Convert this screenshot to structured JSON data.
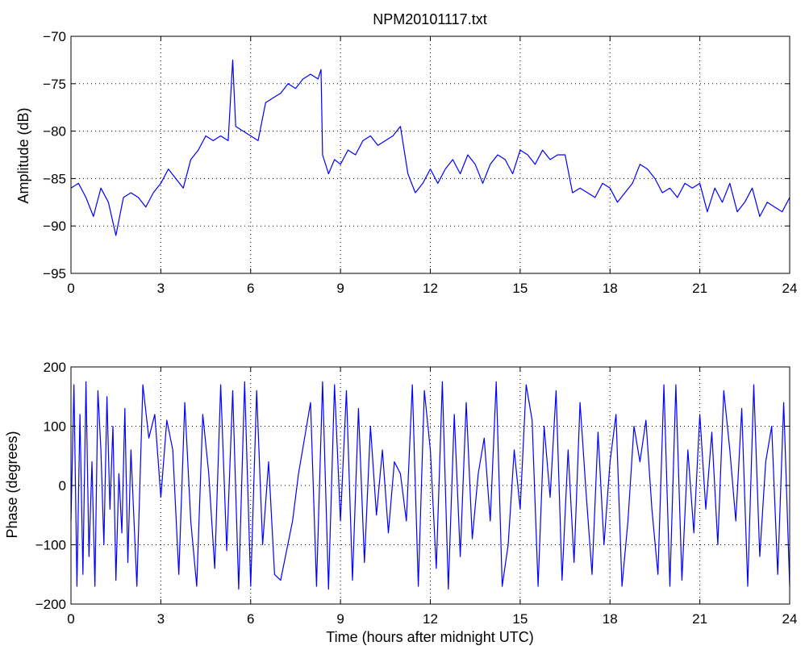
{
  "chart_data": [
    {
      "type": "line",
      "title": "NPM20101117.txt",
      "xlabel": "",
      "ylabel": "Amplitude (dB)",
      "xlim": [
        0,
        24
      ],
      "ylim": [
        -95,
        -70
      ],
      "xticks": [
        0,
        3,
        6,
        9,
        12,
        15,
        18,
        21,
        24
      ],
      "yticks": [
        -95,
        -90,
        -85,
        -80,
        -75,
        -70
      ],
      "grid": true,
      "line_color": "#0000ff",
      "series": [
        {
          "x": [
            0,
            0.25,
            0.5,
            0.75,
            1.0,
            1.25,
            1.5,
            1.75,
            2.0,
            2.25,
            2.5,
            2.75,
            3.0,
            3.25,
            3.5,
            3.75,
            4.0,
            4.25,
            4.5,
            4.75,
            5.0,
            5.25,
            5.4,
            5.5,
            5.75,
            6.0,
            6.25,
            6.5,
            6.75,
            7.0,
            7.25,
            7.5,
            7.75,
            8.0,
            8.25,
            8.35,
            8.4,
            8.6,
            8.8,
            9.0,
            9.25,
            9.5,
            9.75,
            10.0,
            10.25,
            10.5,
            10.75,
            11.0,
            11.25,
            11.5,
            11.75,
            12.0,
            12.25,
            12.5,
            12.75,
            13.0,
            13.25,
            13.5,
            13.75,
            14.0,
            14.25,
            14.5,
            14.75,
            15.0,
            15.25,
            15.5,
            15.75,
            16.0,
            16.25,
            16.5,
            16.75,
            17.0,
            17.25,
            17.5,
            17.75,
            18.0,
            18.25,
            18.5,
            18.75,
            19.0,
            19.25,
            19.5,
            19.75,
            20.0,
            20.25,
            20.5,
            20.75,
            21.0,
            21.25,
            21.5,
            21.75,
            22.0,
            22.25,
            22.5,
            22.75,
            23.0,
            23.25,
            23.5,
            23.75,
            24.0
          ],
          "y": [
            -86,
            -85.5,
            -87,
            -89,
            -86,
            -87.5,
            -91,
            -87,
            -86.5,
            -87,
            -88,
            -86.5,
            -85.5,
            -84,
            -85,
            -86,
            -83,
            -82,
            -80.5,
            -81,
            -80.5,
            -81,
            -72.5,
            -79.5,
            -80,
            -80.5,
            -81,
            -77,
            -76.5,
            -76,
            -75,
            -75.5,
            -74.5,
            -74,
            -74.5,
            -73.5,
            -82.5,
            -84.5,
            -83,
            -83.5,
            -82,
            -82.5,
            -81,
            -80.5,
            -81.5,
            -81,
            -80.5,
            -79.5,
            -84.5,
            -86.5,
            -85.5,
            -84,
            -85.5,
            -84,
            -83,
            -84.5,
            -82.5,
            -83.5,
            -85.5,
            -83.5,
            -82.5,
            -83,
            -84.5,
            -82,
            -82.5,
            -83.5,
            -82,
            -83,
            -82.5,
            -82.5,
            -86.5,
            -86,
            -86.5,
            -87,
            -85.5,
            -86,
            -87.5,
            -86.5,
            -85.5,
            -83.5,
            -84,
            -85,
            -86.5,
            -86,
            -87,
            -85.5,
            -86,
            -85.5,
            -88.5,
            -86,
            -87.5,
            -85.5,
            -88.5,
            -87.5,
            -86,
            -89,
            -87.5,
            -88,
            -88.5,
            -87
          ]
        }
      ]
    },
    {
      "type": "line",
      "title": "",
      "xlabel": "Time (hours after midnight UTC)",
      "ylabel": "Phase (degrees)",
      "xlim": [
        0,
        24
      ],
      "ylim": [
        -200,
        200
      ],
      "xticks": [
        0,
        3,
        6,
        9,
        12,
        15,
        18,
        21,
        24
      ],
      "yticks": [
        -200,
        -100,
        0,
        100,
        200
      ],
      "grid": true,
      "line_color": "#0000ff",
      "series": [
        {
          "x": [
            0,
            0.1,
            0.2,
            0.3,
            0.4,
            0.5,
            0.6,
            0.7,
            0.8,
            0.9,
            1.0,
            1.1,
            1.2,
            1.3,
            1.4,
            1.5,
            1.6,
            1.7,
            1.8,
            1.9,
            2.0,
            2.2,
            2.4,
            2.6,
            2.8,
            3.0,
            3.2,
            3.4,
            3.6,
            3.8,
            4.0,
            4.2,
            4.4,
            4.6,
            4.8,
            5.0,
            5.2,
            5.4,
            5.6,
            5.8,
            6.0,
            6.2,
            6.4,
            6.6,
            6.8,
            7.0,
            7.2,
            7.4,
            7.6,
            7.8,
            8.0,
            8.2,
            8.4,
            8.6,
            8.8,
            9.0,
            9.2,
            9.4,
            9.6,
            9.8,
            10.0,
            10.2,
            10.4,
            10.6,
            10.8,
            11.0,
            11.2,
            11.4,
            11.6,
            11.8,
            12.0,
            12.2,
            12.4,
            12.6,
            12.8,
            13.0,
            13.2,
            13.4,
            13.6,
            13.8,
            14.0,
            14.2,
            14.4,
            14.6,
            14.8,
            15.0,
            15.2,
            15.4,
            15.6,
            15.8,
            16.0,
            16.2,
            16.4,
            16.6,
            16.8,
            17.0,
            17.2,
            17.4,
            17.6,
            17.8,
            18.0,
            18.2,
            18.4,
            18.6,
            18.8,
            19.0,
            19.2,
            19.4,
            19.6,
            19.8,
            20.0,
            20.2,
            20.4,
            20.6,
            20.8,
            21.0,
            21.2,
            21.4,
            21.6,
            21.8,
            22.0,
            22.2,
            22.4,
            22.6,
            22.8,
            23.0,
            23.2,
            23.4,
            23.6,
            23.8,
            24.0
          ],
          "y": [
            -60,
            170,
            -170,
            120,
            -150,
            175,
            -120,
            40,
            -170,
            160,
            60,
            -100,
            150,
            -40,
            100,
            -160,
            20,
            -80,
            130,
            -130,
            60,
            -170,
            170,
            80,
            120,
            -20,
            110,
            60,
            -150,
            140,
            -60,
            -170,
            120,
            20,
            -140,
            170,
            -110,
            160,
            -175,
            175,
            -170,
            160,
            -100,
            40,
            -150,
            -160,
            -110,
            -60,
            20,
            80,
            140,
            -170,
            175,
            -175,
            170,
            -60,
            160,
            -160,
            130,
            -130,
            100,
            -50,
            60,
            -80,
            40,
            20,
            -60,
            170,
            -170,
            160,
            60,
            -140,
            175,
            -175,
            120,
            -120,
            140,
            -90,
            20,
            80,
            -60,
            175,
            -170,
            -100,
            60,
            -40,
            170,
            110,
            -170,
            100,
            -20,
            160,
            -160,
            60,
            -130,
            140,
            -10,
            -150,
            90,
            -100,
            40,
            120,
            -170,
            -60,
            100,
            40,
            110,
            -40,
            -150,
            170,
            -170,
            170,
            -160,
            60,
            -80,
            120,
            -40,
            90,
            -100,
            160,
            60,
            -60,
            130,
            -170,
            170,
            -120,
            40,
            100,
            -150,
            140,
            -170
          ]
        }
      ]
    }
  ]
}
